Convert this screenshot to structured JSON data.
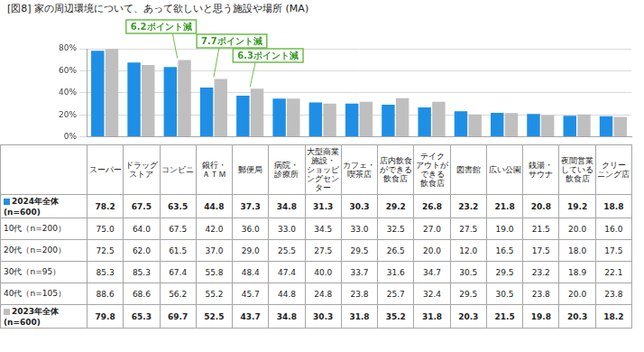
{
  "chart_data": {
    "type": "bar",
    "title": "[図8] 家の周辺環境について、あって欲しいと思う施設や場所 (MA)",
    "categories": [
      "スーパー",
      [
        "ドラッグ",
        "ストア"
      ],
      "コンビニ",
      [
        "銀行・",
        "ＡＴＭ"
      ],
      "郵便局",
      [
        "病院・",
        "診療所"
      ],
      [
        "大型商業",
        "施設・",
        "ショッピ",
        "ングセンター"
      ],
      [
        "カフェ・",
        "喫茶店"
      ],
      [
        "店内飲食",
        "ができる",
        "飲食店"
      ],
      [
        "テイク",
        "アウトが",
        "できる",
        "飲食店"
      ],
      "図書館",
      "広い公園",
      [
        "銭湯・",
        "サウナ"
      ],
      [
        "夜間営業",
        "している",
        "飲食店"
      ],
      [
        "クリー",
        "ニング店"
      ]
    ],
    "series": [
      {
        "name": "2024年全体 (n=600)",
        "color": "#1f8fe5",
        "values": [
          78.2,
          67.5,
          63.5,
          44.8,
          37.3,
          34.8,
          31.3,
          30.3,
          29.2,
          26.8,
          23.2,
          21.8,
          20.8,
          19.2,
          18.8
        ]
      },
      {
        "name": "2023年全体 (n=600)",
        "color": "#bfbfbf",
        "values": [
          79.8,
          65.3,
          69.7,
          52.5,
          43.7,
          34.8,
          30.3,
          31.8,
          35.2,
          31.8,
          20.3,
          21.5,
          19.8,
          20.3,
          18.2
        ]
      }
    ],
    "ylim": [
      0,
      80
    ],
    "yticks": [
      {
        "value": 0,
        "label": "0%"
      },
      {
        "value": 20,
        "label": "20%"
      },
      {
        "value": 40,
        "label": "40%"
      },
      {
        "value": 60,
        "label": "60%"
      },
      {
        "value": 80,
        "label": "80%"
      }
    ],
    "grid": true,
    "data_labels": false,
    "annotations": [
      {
        "text": "6.2ポイント減",
        "category": "コンビニ"
      },
      {
        "text": "7.7ポイント減",
        "category": "銀行・ＡＴＭ"
      },
      {
        "text": "6.3ポイント減",
        "category": "郵便局"
      }
    ]
  },
  "table": {
    "rows": [
      {
        "label": "10代（n=200）",
        "values": [
          "75.0",
          "64.0",
          "67.5",
          "42.0",
          "36.0",
          "33.0",
          "34.5",
          "33.0",
          "32.5",
          "27.0",
          "27.5",
          "19.0",
          "21.5",
          "20.0",
          "16.0"
        ]
      },
      {
        "label": "20代（n=200）",
        "values": [
          "72.5",
          "62.0",
          "61.5",
          "37.0",
          "29.0",
          "25.5",
          "27.5",
          "29.5",
          "26.5",
          "20.0",
          "12.0",
          "16.5",
          "17.5",
          "18.0",
          "17.5"
        ]
      },
      {
        "label": "30代（n=95）",
        "values": [
          "85.3",
          "85.3",
          "67.4",
          "55.8",
          "48.4",
          "47.4",
          "40.0",
          "33.7",
          "31.6",
          "34.7",
          "30.5",
          "29.5",
          "23.2",
          "18.9",
          "22.1"
        ]
      },
      {
        "label": "40代（n=105）",
        "values": [
          "88.6",
          "68.6",
          "56.2",
          "55.2",
          "45.7",
          "44.8",
          "24.8",
          "23.8",
          "25.7",
          "32.4",
          "29.5",
          "30.5",
          "23.8",
          "20.0",
          "23.8"
        ]
      }
    ]
  }
}
